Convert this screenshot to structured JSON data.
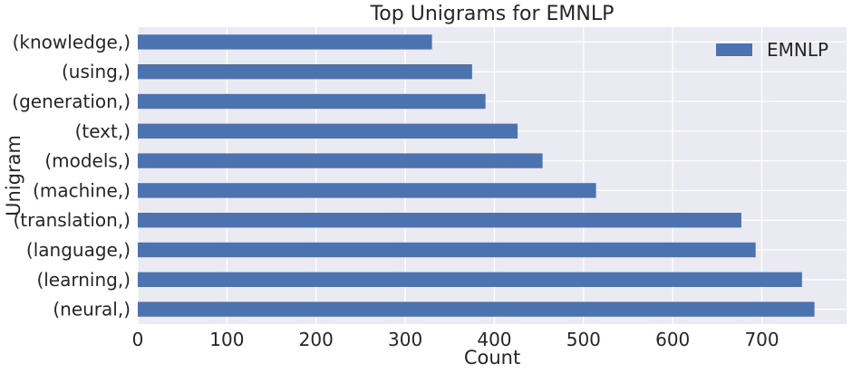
{
  "chart_data": {
    "type": "bar",
    "orientation": "horizontal",
    "title": "Top Unigrams for EMNLP",
    "xlabel": "Count",
    "ylabel": "Unigram",
    "categories": [
      "(neural,)",
      "(learning,)",
      "(language,)",
      "(translation,)",
      "(machine,)",
      "(models,)",
      "(text,)",
      "(generation,)",
      "(using,)",
      "(knowledge,)"
    ],
    "series": [
      {
        "name": "EMNLP",
        "values": [
          759,
          745,
          693,
          677,
          514,
          454,
          426,
          390,
          375,
          330
        ]
      }
    ],
    "xlim": [
      0,
      795
    ],
    "xticks": [
      0,
      100,
      200,
      300,
      400,
      500,
      600,
      700
    ],
    "grid": true,
    "legend_position": "top-right"
  },
  "colors": {
    "bar": "#4c72b0",
    "background": "#eaeaf2",
    "grid": "#ffffff"
  }
}
